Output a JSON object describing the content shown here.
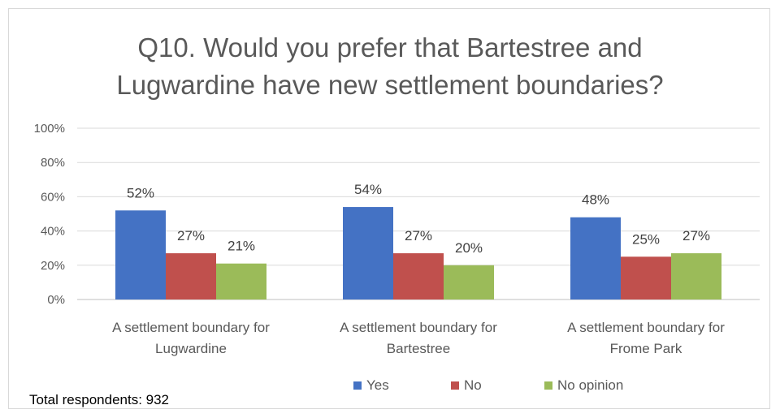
{
  "chart_data": {
    "type": "bar",
    "title_lines": [
      "Q10. Would you prefer that Bartestree and",
      "Lugwardine have new settlement boundaries?"
    ],
    "categories": [
      [
        "A settlement boundary for",
        "Lugwardine"
      ],
      [
        "A settlement boundary for",
        "Bartestree"
      ],
      [
        "A settlement boundary for",
        "Frome Park"
      ]
    ],
    "series": [
      {
        "name": "Yes",
        "values": [
          52,
          54,
          48
        ],
        "labels": [
          "52%",
          "54%",
          "48%"
        ],
        "color": "#4472c4"
      },
      {
        "name": "No",
        "values": [
          27,
          27,
          25
        ],
        "labels": [
          "27%",
          "27%",
          "25%"
        ],
        "color": "#c0504d"
      },
      {
        "name": "No opinion",
        "values": [
          21,
          20,
          27
        ],
        "labels": [
          "21%",
          "20%",
          "27%"
        ],
        "color": "#9bbb59"
      }
    ],
    "ylim": [
      0,
      100
    ],
    "yticks": [
      0,
      20,
      40,
      60,
      80,
      100
    ],
    "ytick_labels": [
      "0%",
      "20%",
      "40%",
      "60%",
      "80%",
      "100%"
    ],
    "grid": true,
    "legend_position": "bottom"
  },
  "footnote": "Total respondents: 932"
}
